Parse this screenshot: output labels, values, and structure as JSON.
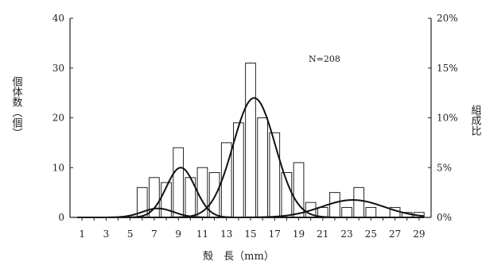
{
  "chart_data": {
    "type": "bar",
    "annotation": "N=208",
    "xlabel": "殻　長（mm）",
    "ylabel": "個体数（個）",
    "ylabel_right": "組成比",
    "x_ticks": [
      "1",
      "3",
      "5",
      "7",
      "9",
      "11",
      "13",
      "15",
      "17",
      "19",
      "21",
      "23",
      "25",
      "27",
      "29"
    ],
    "xlim": [
      0,
      30
    ],
    "ylim": [
      0,
      40
    ],
    "y_ticks": [
      "0",
      "10",
      "20",
      "30",
      "40"
    ],
    "ylim_right": [
      0,
      20
    ],
    "y_ticks_right": [
      "0%",
      "5%",
      "10%",
      "15%",
      "20%"
    ],
    "grid": false,
    "bars": {
      "x": [
        6,
        7,
        8,
        9,
        10,
        11,
        12,
        13,
        14,
        15,
        16,
        17,
        18,
        19,
        20,
        21,
        22,
        23,
        24,
        25,
        27,
        28,
        29
      ],
      "values": [
        6,
        8,
        7,
        14,
        8,
        10,
        9,
        15,
        19,
        31,
        20,
        17,
        9,
        11,
        3,
        2,
        5,
        2,
        6,
        2,
        2,
        1,
        1
      ]
    },
    "curves": [
      {
        "type": "normal",
        "amplitude": 1.8,
        "mean": 7.3,
        "sd": 1.3
      },
      {
        "type": "normal",
        "amplitude": 10.0,
        "mean": 9.2,
        "sd": 1.2
      },
      {
        "type": "normal",
        "amplitude": 24.0,
        "mean": 15.3,
        "sd": 1.75
      },
      {
        "type": "normal",
        "amplitude": 3.5,
        "mean": 23.5,
        "sd": 2.6
      }
    ]
  }
}
